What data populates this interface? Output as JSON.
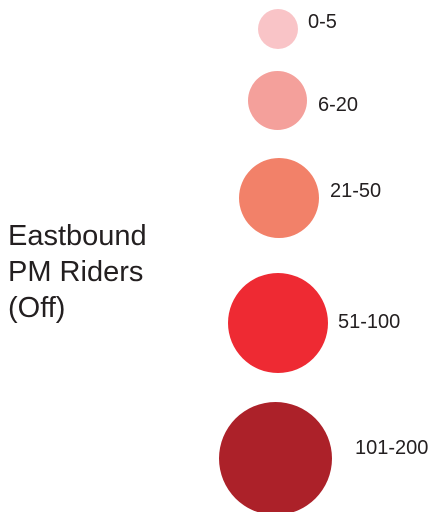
{
  "legend": {
    "title_lines": [
      "Eastbound",
      "PM Riders",
      "(Off)"
    ],
    "items": [
      {
        "label": "0-5",
        "color": "#f9c4c7"
      },
      {
        "label": "6-20",
        "color": "#f4a09b"
      },
      {
        "label": "21-50",
        "color": "#f28169"
      },
      {
        "label": "51-100",
        "color": "#ee2a33"
      },
      {
        "label": "101-200",
        "color": "#ac2129"
      }
    ]
  }
}
